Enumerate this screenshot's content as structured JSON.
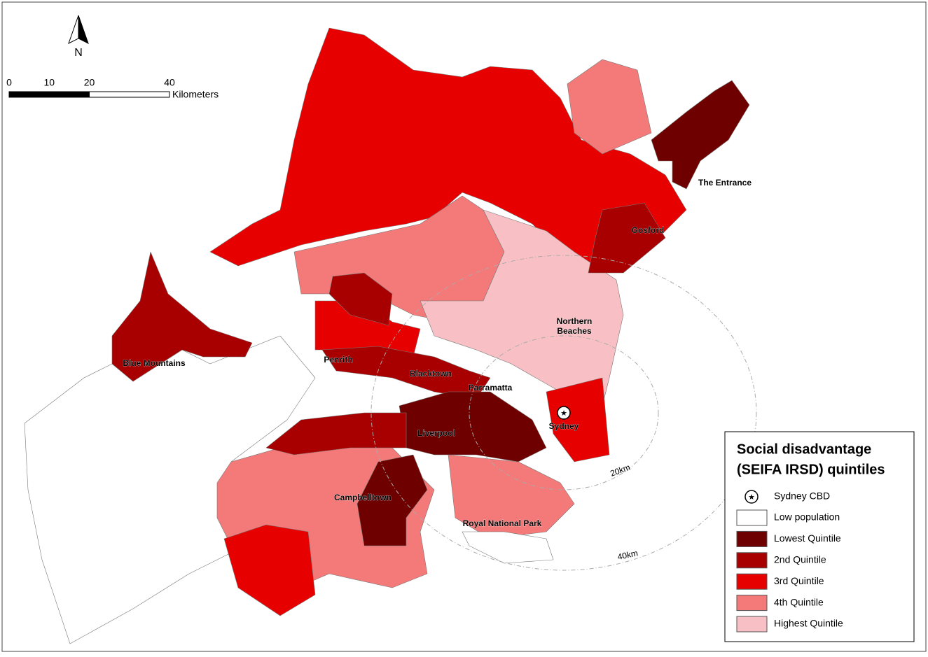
{
  "north_label": "N",
  "scale_bar": {
    "ticks": [
      0,
      10,
      20,
      40
    ],
    "unit": "Kilometers"
  },
  "rings": [
    "20km",
    "40km"
  ],
  "places": [
    "The Entrance",
    "Gosford",
    [
      "Northern",
      "Beaches"
    ],
    "Blue Mountains",
    "Penrith",
    "Blacktown",
    "Parramatta",
    "Sydney",
    "Liverpool",
    "Campbelltown",
    "Royal National Park"
  ],
  "legend": {
    "title_lines": [
      "Social disadvantage",
      "(SEIFA IRSD) quintiles"
    ],
    "cbd": "Sydney CBD",
    "items": [
      {
        "label": "Low population",
        "color": "#ffffff"
      },
      {
        "label": "Lowest Quintile",
        "color": "#6e0000"
      },
      {
        "label": "2nd Quintile",
        "color": "#a80000"
      },
      {
        "label": "3rd Quintile",
        "color": "#e60000"
      },
      {
        "label": "4th Quintile",
        "color": "#f47a7a"
      },
      {
        "label": "Highest Quintile",
        "color": "#f8c0c4"
      }
    ]
  }
}
